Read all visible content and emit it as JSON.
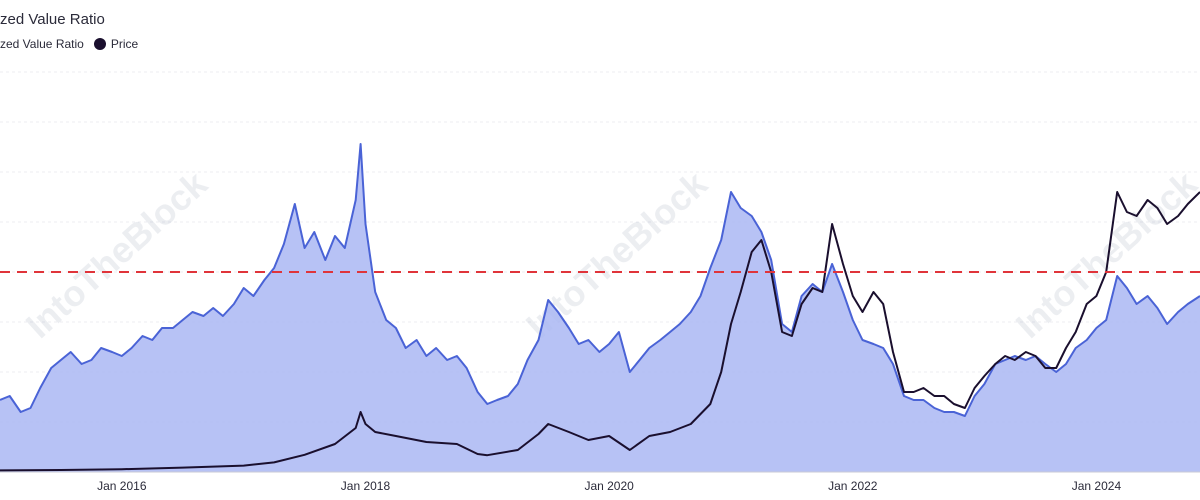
{
  "title": "zed Value Ratio",
  "legend": [
    {
      "label": "zed Value Ratio",
      "color": "#4a63d6"
    },
    {
      "label": "Price",
      "color": "#1a0f2e"
    }
  ],
  "watermark": "IntoTheBlock",
  "chart_data": {
    "type": "line",
    "title": "zed Value Ratio",
    "xlabel": "",
    "ylabel": "",
    "x_range": [
      2015.0,
      2024.85
    ],
    "x_ticks": [
      {
        "x": 2016.0,
        "label": "Jan 2016"
      },
      {
        "x": 2018.0,
        "label": "Jan 2018"
      },
      {
        "x": 2020.0,
        "label": "Jan 2020"
      },
      {
        "x": 2022.0,
        "label": "Jan 2022"
      },
      {
        "x": 2024.0,
        "label": "Jan 2024"
      }
    ],
    "ylim": [
      0,
      100
    ],
    "grid": true,
    "threshold": {
      "y": 50,
      "color": "#e0343a",
      "style": "dashed"
    },
    "series": [
      {
        "name": "zed Value Ratio",
        "color": "#4a63d6",
        "fill": "#aab7f3",
        "points": [
          [
            2015.0,
            18
          ],
          [
            2015.08,
            19
          ],
          [
            2015.17,
            15
          ],
          [
            2015.25,
            16
          ],
          [
            2015.33,
            21
          ],
          [
            2015.42,
            26
          ],
          [
            2015.5,
            28
          ],
          [
            2015.58,
            30
          ],
          [
            2015.67,
            27
          ],
          [
            2015.75,
            28
          ],
          [
            2015.83,
            31
          ],
          [
            2015.92,
            30
          ],
          [
            2016.0,
            29
          ],
          [
            2016.08,
            31
          ],
          [
            2016.17,
            34
          ],
          [
            2016.25,
            33
          ],
          [
            2016.33,
            36
          ],
          [
            2016.42,
            36
          ],
          [
            2016.5,
            38
          ],
          [
            2016.58,
            40
          ],
          [
            2016.67,
            39
          ],
          [
            2016.75,
            41
          ],
          [
            2016.83,
            39
          ],
          [
            2016.92,
            42
          ],
          [
            2017.0,
            46
          ],
          [
            2017.08,
            44
          ],
          [
            2017.17,
            48
          ],
          [
            2017.25,
            51
          ],
          [
            2017.33,
            57
          ],
          [
            2017.42,
            67
          ],
          [
            2017.5,
            56
          ],
          [
            2017.58,
            60
          ],
          [
            2017.67,
            53
          ],
          [
            2017.75,
            59
          ],
          [
            2017.83,
            56
          ],
          [
            2017.92,
            68
          ],
          [
            2017.96,
            82
          ],
          [
            2018.0,
            62
          ],
          [
            2018.08,
            45
          ],
          [
            2018.17,
            38
          ],
          [
            2018.25,
            36
          ],
          [
            2018.33,
            31
          ],
          [
            2018.42,
            33
          ],
          [
            2018.5,
            29
          ],
          [
            2018.58,
            31
          ],
          [
            2018.67,
            28
          ],
          [
            2018.75,
            29
          ],
          [
            2018.83,
            26
          ],
          [
            2018.92,
            20
          ],
          [
            2019.0,
            17
          ],
          [
            2019.08,
            18
          ],
          [
            2019.17,
            19
          ],
          [
            2019.25,
            22
          ],
          [
            2019.33,
            28
          ],
          [
            2019.42,
            33
          ],
          [
            2019.5,
            43
          ],
          [
            2019.58,
            40
          ],
          [
            2019.67,
            36
          ],
          [
            2019.75,
            32
          ],
          [
            2019.83,
            33
          ],
          [
            2019.92,
            30
          ],
          [
            2020.0,
            32
          ],
          [
            2020.08,
            35
          ],
          [
            2020.17,
            25
          ],
          [
            2020.25,
            28
          ],
          [
            2020.33,
            31
          ],
          [
            2020.42,
            33
          ],
          [
            2020.5,
            35
          ],
          [
            2020.58,
            37
          ],
          [
            2020.67,
            40
          ],
          [
            2020.75,
            44
          ],
          [
            2020.83,
            51
          ],
          [
            2020.92,
            58
          ],
          [
            2021.0,
            70
          ],
          [
            2021.08,
            66
          ],
          [
            2021.17,
            64
          ],
          [
            2021.25,
            60
          ],
          [
            2021.33,
            53
          ],
          [
            2021.42,
            37
          ],
          [
            2021.5,
            35
          ],
          [
            2021.58,
            44
          ],
          [
            2021.67,
            47
          ],
          [
            2021.75,
            45
          ],
          [
            2021.83,
            52
          ],
          [
            2021.92,
            45
          ],
          [
            2022.0,
            38
          ],
          [
            2022.08,
            33
          ],
          [
            2022.17,
            32
          ],
          [
            2022.25,
            31
          ],
          [
            2022.33,
            27
          ],
          [
            2022.42,
            19
          ],
          [
            2022.5,
            18
          ],
          [
            2022.58,
            18
          ],
          [
            2022.67,
            16
          ],
          [
            2022.75,
            15
          ],
          [
            2022.83,
            15
          ],
          [
            2022.92,
            14
          ],
          [
            2023.0,
            19
          ],
          [
            2023.08,
            22
          ],
          [
            2023.17,
            27
          ],
          [
            2023.25,
            28
          ],
          [
            2023.33,
            29
          ],
          [
            2023.42,
            28
          ],
          [
            2023.5,
            29
          ],
          [
            2023.58,
            27
          ],
          [
            2023.67,
            25
          ],
          [
            2023.75,
            27
          ],
          [
            2023.83,
            31
          ],
          [
            2023.92,
            33
          ],
          [
            2024.0,
            36
          ],
          [
            2024.08,
            38
          ],
          [
            2024.17,
            49
          ],
          [
            2024.25,
            46
          ],
          [
            2024.33,
            42
          ],
          [
            2024.42,
            44
          ],
          [
            2024.5,
            41
          ],
          [
            2024.58,
            37
          ],
          [
            2024.67,
            40
          ],
          [
            2024.75,
            42
          ],
          [
            2024.85,
            44
          ]
        ]
      },
      {
        "name": "Price",
        "color": "#1a0f2e",
        "points": [
          [
            2015.0,
            0.4
          ],
          [
            2015.5,
            0.5
          ],
          [
            2016.0,
            0.7
          ],
          [
            2016.5,
            1.1
          ],
          [
            2017.0,
            1.6
          ],
          [
            2017.25,
            2.4
          ],
          [
            2017.5,
            4.3
          ],
          [
            2017.75,
            7.0
          ],
          [
            2017.92,
            11
          ],
          [
            2017.96,
            15
          ],
          [
            2018.0,
            12
          ],
          [
            2018.08,
            10
          ],
          [
            2018.25,
            9
          ],
          [
            2018.5,
            7.5
          ],
          [
            2018.75,
            7
          ],
          [
            2018.92,
            4.5
          ],
          [
            2019.0,
            4.2
          ],
          [
            2019.25,
            5.5
          ],
          [
            2019.42,
            9.5
          ],
          [
            2019.5,
            12
          ],
          [
            2019.67,
            10
          ],
          [
            2019.83,
            8
          ],
          [
            2020.0,
            9
          ],
          [
            2020.17,
            5.5
          ],
          [
            2020.33,
            9
          ],
          [
            2020.5,
            10
          ],
          [
            2020.67,
            12
          ],
          [
            2020.83,
            17
          ],
          [
            2020.92,
            25
          ],
          [
            2021.0,
            37
          ],
          [
            2021.08,
            45
          ],
          [
            2021.17,
            55
          ],
          [
            2021.25,
            58
          ],
          [
            2021.33,
            50
          ],
          [
            2021.42,
            35
          ],
          [
            2021.5,
            34
          ],
          [
            2021.58,
            42
          ],
          [
            2021.67,
            46
          ],
          [
            2021.75,
            45
          ],
          [
            2021.83,
            62
          ],
          [
            2021.92,
            52
          ],
          [
            2022.0,
            44
          ],
          [
            2022.08,
            40
          ],
          [
            2022.17,
            45
          ],
          [
            2022.25,
            42
          ],
          [
            2022.33,
            30
          ],
          [
            2022.42,
            20
          ],
          [
            2022.5,
            20
          ],
          [
            2022.58,
            21
          ],
          [
            2022.67,
            19
          ],
          [
            2022.75,
            19
          ],
          [
            2022.83,
            17
          ],
          [
            2022.92,
            16
          ],
          [
            2023.0,
            21
          ],
          [
            2023.08,
            24
          ],
          [
            2023.17,
            27
          ],
          [
            2023.25,
            29
          ],
          [
            2023.33,
            28
          ],
          [
            2023.42,
            30
          ],
          [
            2023.5,
            29
          ],
          [
            2023.58,
            26
          ],
          [
            2023.67,
            26
          ],
          [
            2023.75,
            31
          ],
          [
            2023.83,
            35
          ],
          [
            2023.92,
            42
          ],
          [
            2024.0,
            44
          ],
          [
            2024.08,
            50
          ],
          [
            2024.17,
            70
          ],
          [
            2024.25,
            65
          ],
          [
            2024.33,
            64
          ],
          [
            2024.42,
            68
          ],
          [
            2024.5,
            66
          ],
          [
            2024.58,
            62
          ],
          [
            2024.67,
            64
          ],
          [
            2024.75,
            67
          ],
          [
            2024.85,
            70
          ]
        ]
      }
    ]
  }
}
